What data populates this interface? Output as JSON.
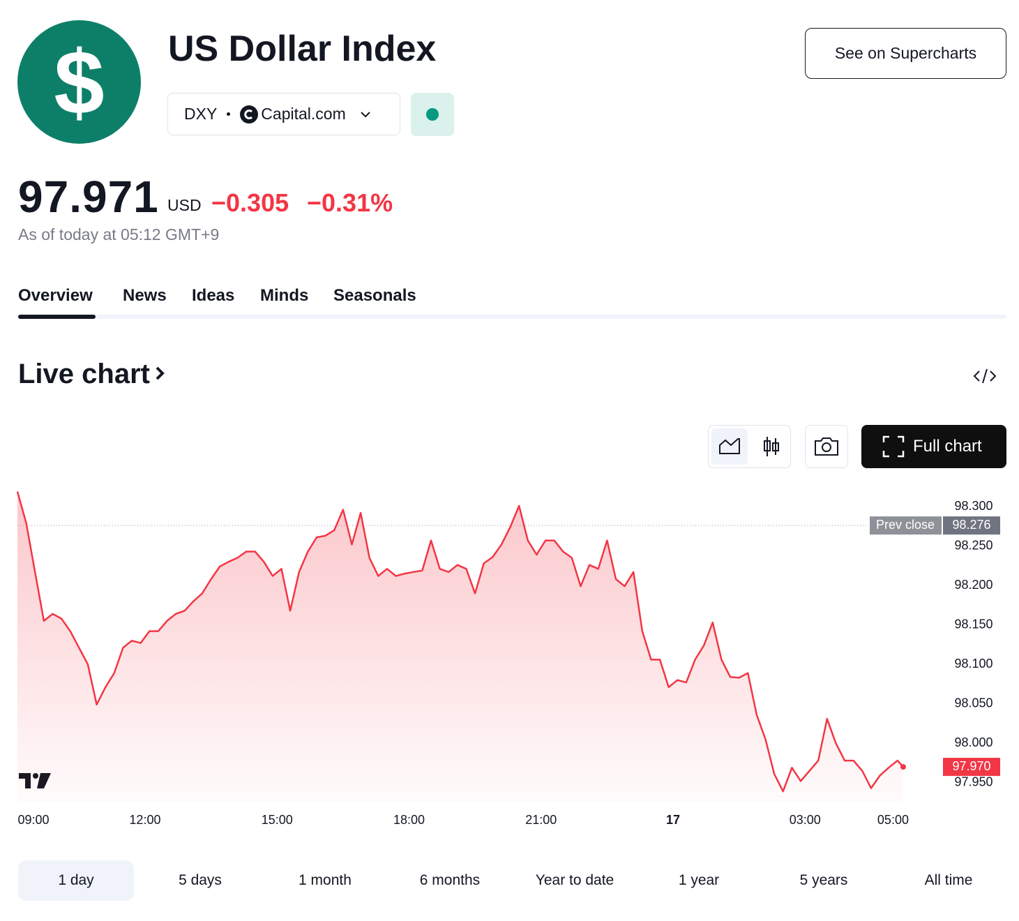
{
  "header": {
    "logo": "$",
    "title": "US Dollar Index",
    "symbol": "DXY",
    "exchange": "Capital.com",
    "supercharts_button": "See on Supercharts"
  },
  "quote": {
    "price": "97.971",
    "currency": "USD",
    "change": "−0.305",
    "change_percent": "−0.31%",
    "as_of": "As of today at 05:12 GMT+9"
  },
  "tabs": [
    "Overview",
    "News",
    "Ideas",
    "Minds",
    "Seasonals"
  ],
  "live_chart": {
    "title": "Live chart",
    "full_chart_button": "Full chart"
  },
  "chart_data": {
    "type": "line",
    "color": "#f23645",
    "grid": false,
    "x": [
      9.1,
      9.3,
      9.5,
      9.7,
      9.9,
      10.1,
      10.3,
      10.5,
      10.7,
      10.9,
      11.1,
      11.3,
      11.5,
      11.7,
      11.9,
      12.1,
      12.3,
      12.5,
      12.7,
      12.9,
      13.1,
      13.3,
      13.5,
      13.7,
      13.9,
      14.1,
      14.3,
      14.5,
      14.7,
      14.9,
      15.1,
      15.3,
      15.5,
      15.7,
      15.9,
      16.1,
      16.3,
      16.5,
      16.7,
      16.9,
      17.1,
      17.3,
      17.5,
      17.7,
      17.9,
      18.1,
      18.3,
      18.5,
      18.7,
      18.9,
      19.1,
      19.3,
      19.5,
      19.7,
      19.9,
      20.1,
      20.3,
      20.5,
      20.7,
      20.9,
      21.1,
      21.3,
      21.5,
      21.7,
      21.9,
      22.1,
      22.3,
      22.5,
      22.7,
      22.9,
      23.1,
      23.3,
      23.5,
      23.7,
      23.9,
      24.1,
      24.3,
      24.5,
      24.7,
      24.9,
      25.1,
      25.3,
      25.5,
      25.7,
      25.9,
      26.1,
      26.3,
      26.5,
      26.7,
      26.9,
      27.1,
      27.3,
      27.5,
      27.7,
      27.9,
      28.1,
      28.3,
      28.5,
      28.7,
      28.9,
      29.1,
      29.23
    ],
    "values": [
      98.319,
      98.279,
      98.217,
      98.155,
      98.164,
      98.158,
      98.142,
      98.121,
      98.1,
      98.049,
      98.071,
      98.089,
      98.121,
      98.13,
      98.127,
      98.142,
      98.142,
      98.155,
      98.164,
      98.168,
      98.18,
      98.19,
      98.208,
      98.224,
      98.23,
      98.235,
      98.243,
      98.243,
      98.23,
      98.212,
      98.221,
      98.168,
      98.217,
      98.243,
      98.261,
      98.263,
      98.27,
      98.296,
      98.252,
      98.292,
      98.235,
      98.212,
      98.221,
      98.212,
      98.215,
      98.217,
      98.219,
      98.257,
      98.221,
      98.217,
      98.226,
      98.221,
      98.19,
      98.228,
      98.236,
      98.252,
      98.274,
      98.301,
      98.257,
      98.239,
      98.257,
      98.257,
      98.243,
      98.235,
      98.199,
      98.226,
      98.221,
      98.257,
      98.208,
      98.199,
      98.217,
      98.142,
      98.106,
      98.106,
      98.071,
      98.08,
      98.077,
      98.106,
      98.124,
      98.153,
      98.106,
      98.084,
      98.083,
      98.089,
      98.036,
      98.005,
      97.961,
      97.939,
      97.969,
      97.952,
      97.965,
      97.978,
      98.031,
      98.0,
      97.978,
      97.978,
      97.965,
      97.943,
      97.959,
      97.969,
      97.978,
      97.97
    ],
    "xlim": [
      9.1,
      29.5
    ],
    "ylim": [
      97.925,
      98.323
    ],
    "xticks": [
      {
        "value": 9,
        "label": "09:00"
      },
      {
        "value": 12,
        "label": "12:00"
      },
      {
        "value": 15,
        "label": "15:00"
      },
      {
        "value": 18,
        "label": "18:00"
      },
      {
        "value": 21,
        "label": "21:00"
      },
      {
        "value": 24,
        "label": "17"
      },
      {
        "value": 27,
        "label": "03:00"
      },
      {
        "value": 29,
        "label": "05:00"
      }
    ],
    "yticks": [
      {
        "value": 97.95,
        "label": "97.950"
      },
      {
        "value": 98.0,
        "label": "98.000"
      },
      {
        "value": 98.05,
        "label": "98.050"
      },
      {
        "value": 98.1,
        "label": "98.100"
      },
      {
        "value": 98.15,
        "label": "98.150"
      },
      {
        "value": 98.2,
        "label": "98.200"
      },
      {
        "value": 98.25,
        "label": "98.250"
      },
      {
        "value": 98.3,
        "label": "98.300"
      }
    ],
    "prev_close": {
      "label": "Prev close",
      "value": 98.276
    },
    "last_value": {
      "value": 97.97,
      "label": "97.970"
    }
  },
  "ranges": [
    "1 day",
    "5 days",
    "1 month",
    "6 months",
    "Year to date",
    "1 year",
    "5 years",
    "All time"
  ]
}
